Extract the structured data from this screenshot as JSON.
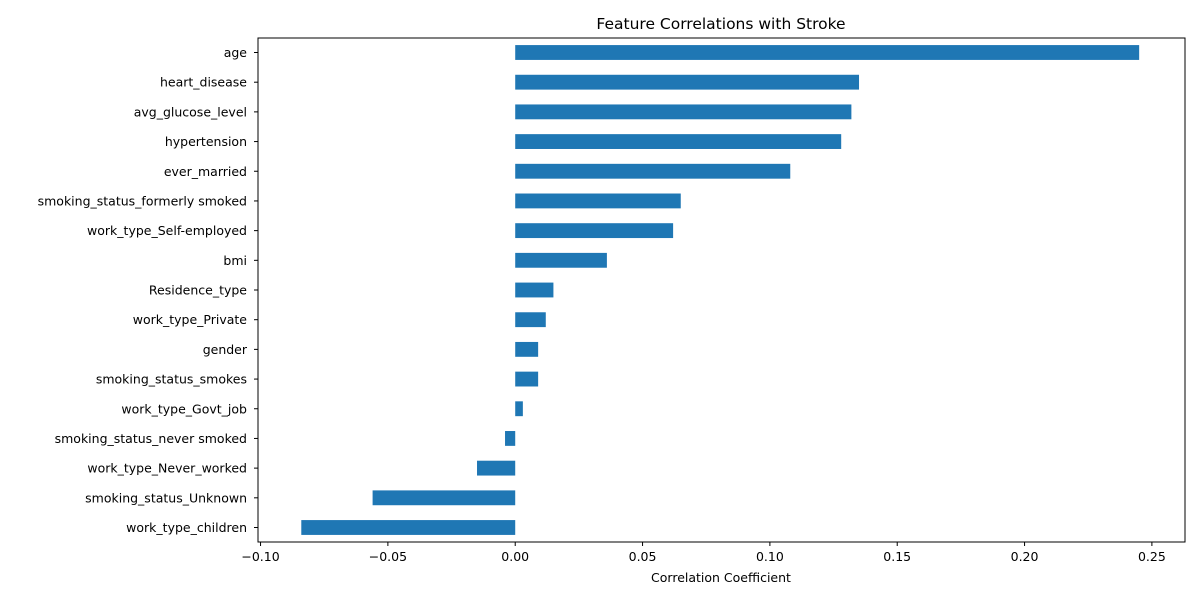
{
  "chart_data": {
    "type": "bar",
    "orientation": "horizontal",
    "title": "Feature Correlations with Stroke",
    "xlabel": "Correlation Coefficient",
    "ylabel": "",
    "xlim": [
      -0.101,
      0.263
    ],
    "xticks": [
      -0.1,
      -0.05,
      0.0,
      0.05,
      0.1,
      0.15,
      0.2,
      0.25
    ],
    "xtick_labels": [
      "−0.10",
      "−0.05",
      "0.00",
      "0.05",
      "0.10",
      "0.15",
      "0.20",
      "0.25"
    ],
    "grid": false,
    "legend": "none",
    "bar_color": "#1f77b4",
    "categories": [
      "age",
      "heart_disease",
      "avg_glucose_level",
      "hypertension",
      "ever_married",
      "smoking_status_formerly smoked",
      "work_type_Self-employed",
      "bmi",
      "Residence_type",
      "work_type_Private",
      "gender",
      "smoking_status_smokes",
      "work_type_Govt_job",
      "smoking_status_never smoked",
      "work_type_Never_worked",
      "smoking_status_Unknown",
      "work_type_children"
    ],
    "values": [
      0.245,
      0.135,
      0.132,
      0.128,
      0.108,
      0.065,
      0.062,
      0.036,
      0.015,
      0.012,
      0.009,
      0.009,
      0.003,
      -0.004,
      -0.015,
      -0.056,
      -0.084
    ]
  }
}
